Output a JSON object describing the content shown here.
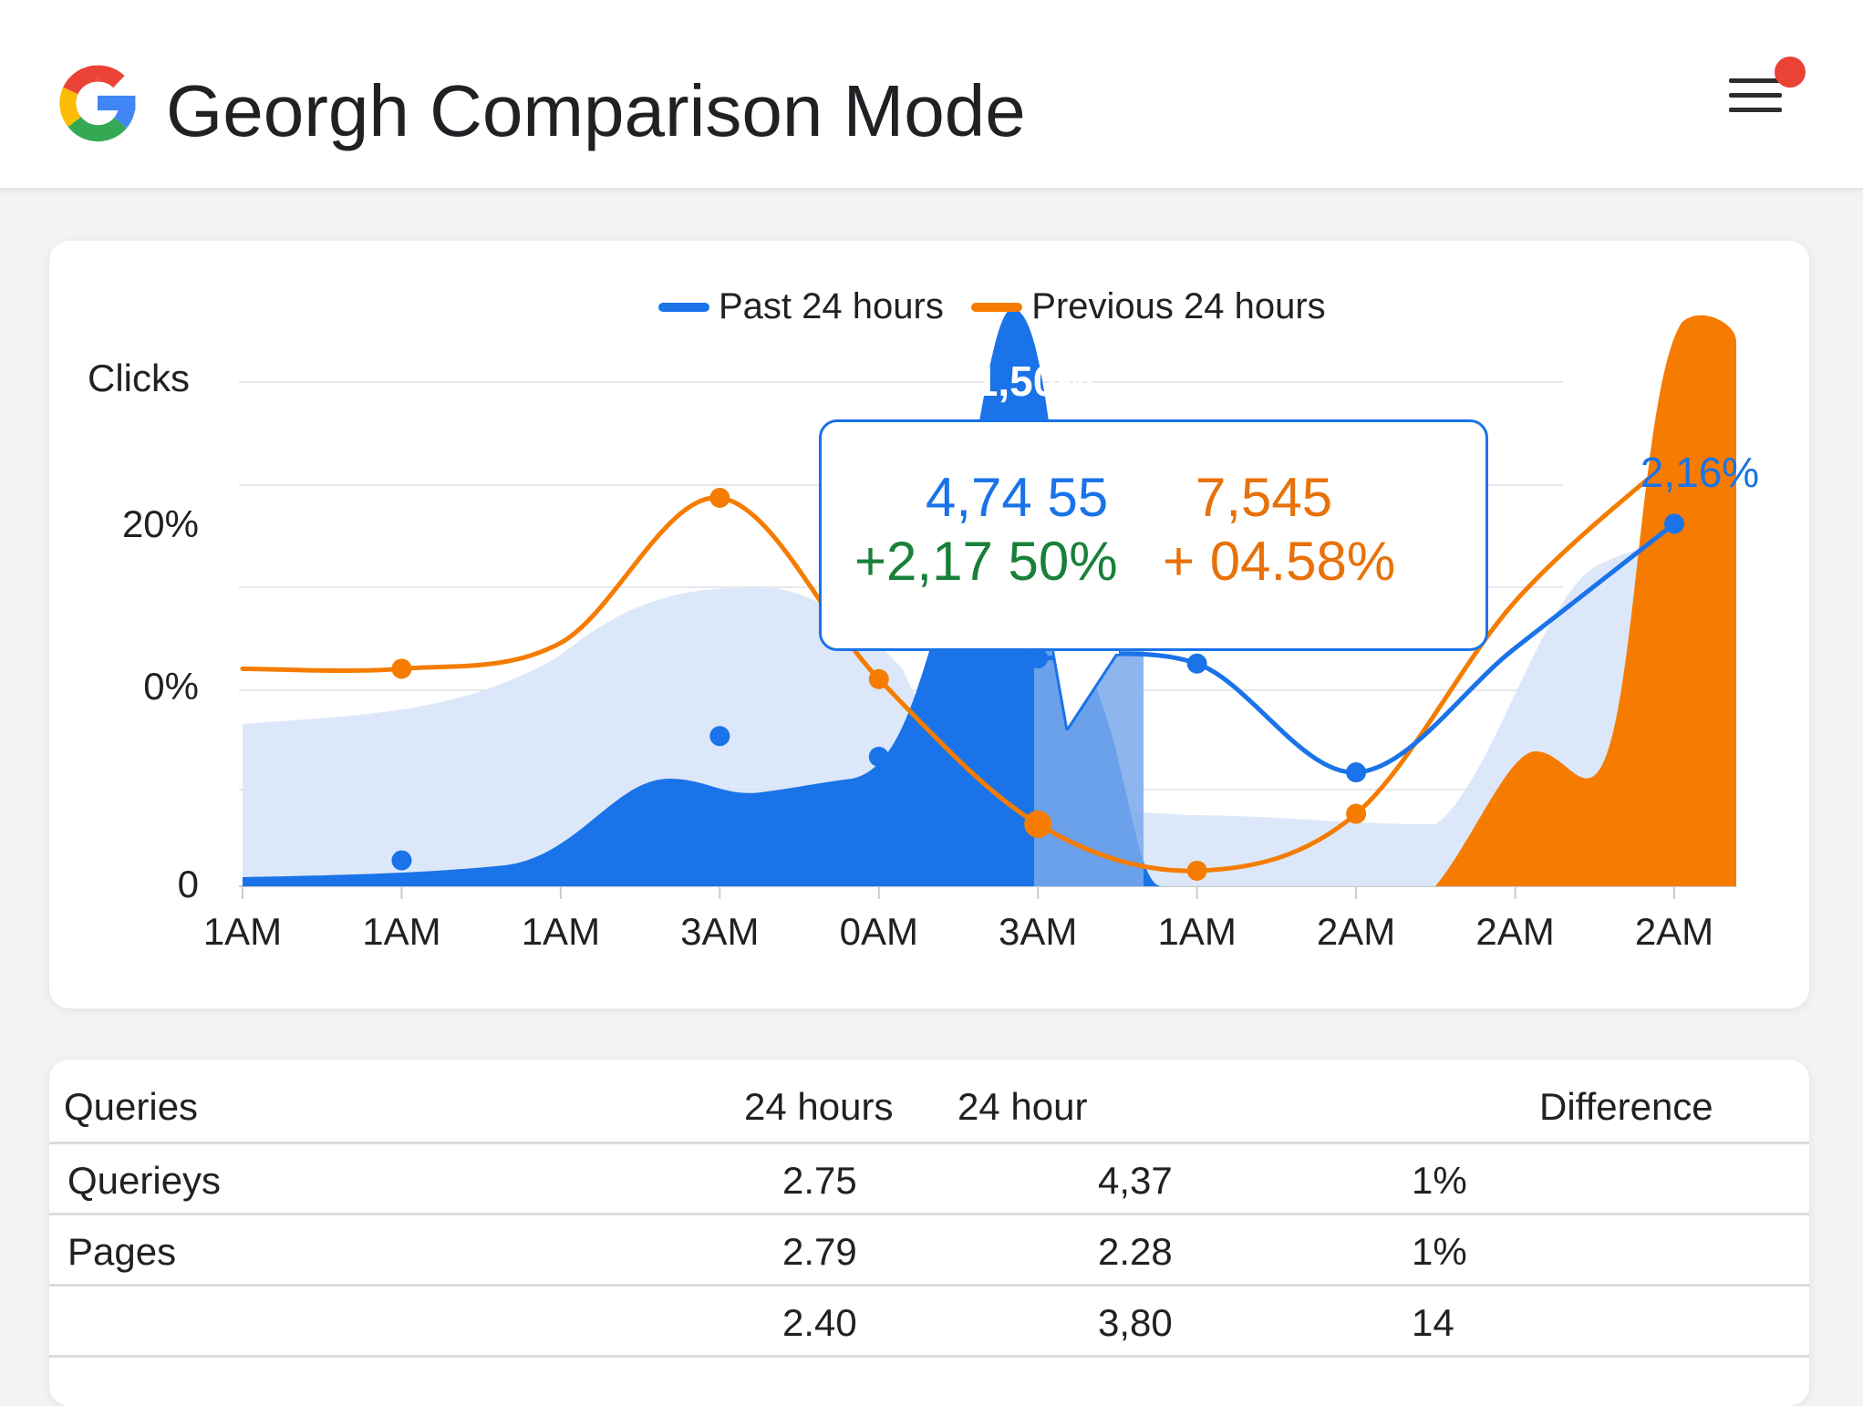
{
  "header": {
    "title": "Georgh Comparison Mode",
    "logo_icon": "google-g-logo",
    "menu_icon": "hamburger-menu-icon",
    "notification_color": "#ea4335"
  },
  "chart": {
    "legend": [
      {
        "label": "Past 24 hours",
        "color": "#1a73e8"
      },
      {
        "label": "Previous 24 hours",
        "color": "#f57c00"
      }
    ],
    "y_title": "Clicks",
    "callout_blue": "1,50%",
    "callout_right": "2,16%",
    "tooltip": {
      "current_value": "4,74 55",
      "current_change": "+2,17 50%",
      "previous_value": "7,545",
      "previous_change": "+ 04.58%"
    }
  },
  "chart_data": {
    "type": "area",
    "ylabel": "Clicks",
    "y_ticks": [
      "20%",
      "0%",
      "0"
    ],
    "categories": [
      "1AM",
      "1AM",
      "1AM",
      "3AM",
      "0AM",
      "3AM",
      "1AM",
      "2AM",
      "2AM",
      "2AM"
    ],
    "series": [
      {
        "name": "Past 24 hours",
        "color": "#1a73e8",
        "values": [
          2,
          5,
          14,
          29,
          25,
          44,
          43,
          22,
          46,
          70
        ]
      },
      {
        "name": "Previous 24 hours",
        "color": "#f57c00",
        "values": [
          42,
          42,
          47,
          75,
          40,
          12,
          3,
          14,
          55,
          83
        ]
      }
    ],
    "legend_position": "top-center",
    "grid": true
  },
  "table": {
    "headers": [
      "Queries",
      "24 hours",
      "24 hour",
      "Difference"
    ],
    "rows": [
      [
        "Querieys",
        "2.75",
        "4,37",
        "1%"
      ],
      [
        "Pages",
        "2.79",
        "2.28",
        "1%"
      ],
      [
        "",
        "2.40",
        "3,80",
        "14"
      ]
    ]
  }
}
